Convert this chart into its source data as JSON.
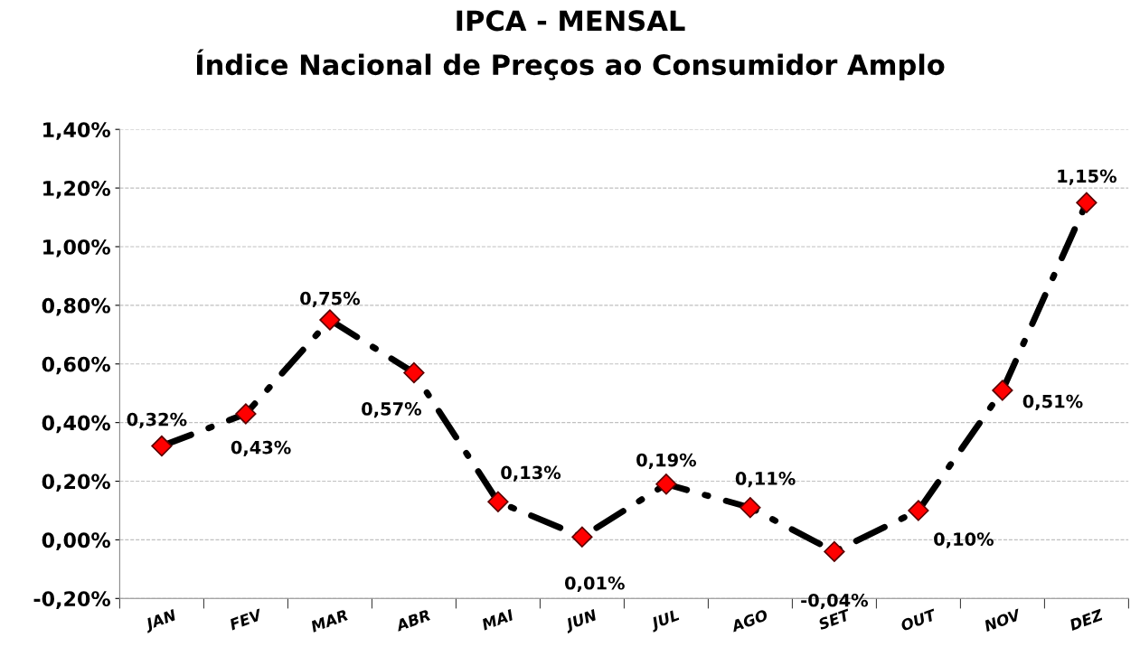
{
  "chart_data": {
    "type": "line",
    "title": "IPCA - MENSAL\nÍndice Nacional de Preços ao Consumidor Amplo",
    "categories": [
      "JAN",
      "FEV",
      "MAR",
      "ABR",
      "MAI",
      "JUN",
      "JUL",
      "AGO",
      "SET",
      "OUT",
      "NOV",
      "DEZ"
    ],
    "series": [
      {
        "color": "#ff0000",
        "values": [
          0.32,
          0.43,
          0.75,
          0.57,
          0.13,
          0.01,
          0.19,
          0.11,
          -0.04,
          0.1,
          0.51,
          1.15
        ],
        "value_labels": [
          "0,32%",
          "0,43%",
          "0,75%",
          "0,57%",
          "0,13%",
          "0,01%",
          "0,19%",
          "0,11%",
          "-0,04%",
          "0,10%",
          "0,51%",
          "1,15%"
        ]
      }
    ],
    "ylim": [
      -0.2,
      1.4
    ],
    "yticks": [
      {
        "value": -0.2,
        "label": "-0,20%"
      },
      {
        "value": 0,
        "label": "0,00%"
      },
      {
        "value": 0.2,
        "label": "0,20%"
      },
      {
        "value": 0.4,
        "label": "0,40%"
      },
      {
        "value": 0.6,
        "label": "0,60%"
      },
      {
        "value": 0.8,
        "label": "0,80%"
      },
      {
        "value": 1.0,
        "label": "1,00%"
      },
      {
        "value": 1.2,
        "label": "1,20%"
      },
      {
        "value": 1.4,
        "label": "1,40%"
      }
    ],
    "grid": "y",
    "marker": "diamond",
    "line_style": "dashdot",
    "legend": false
  }
}
